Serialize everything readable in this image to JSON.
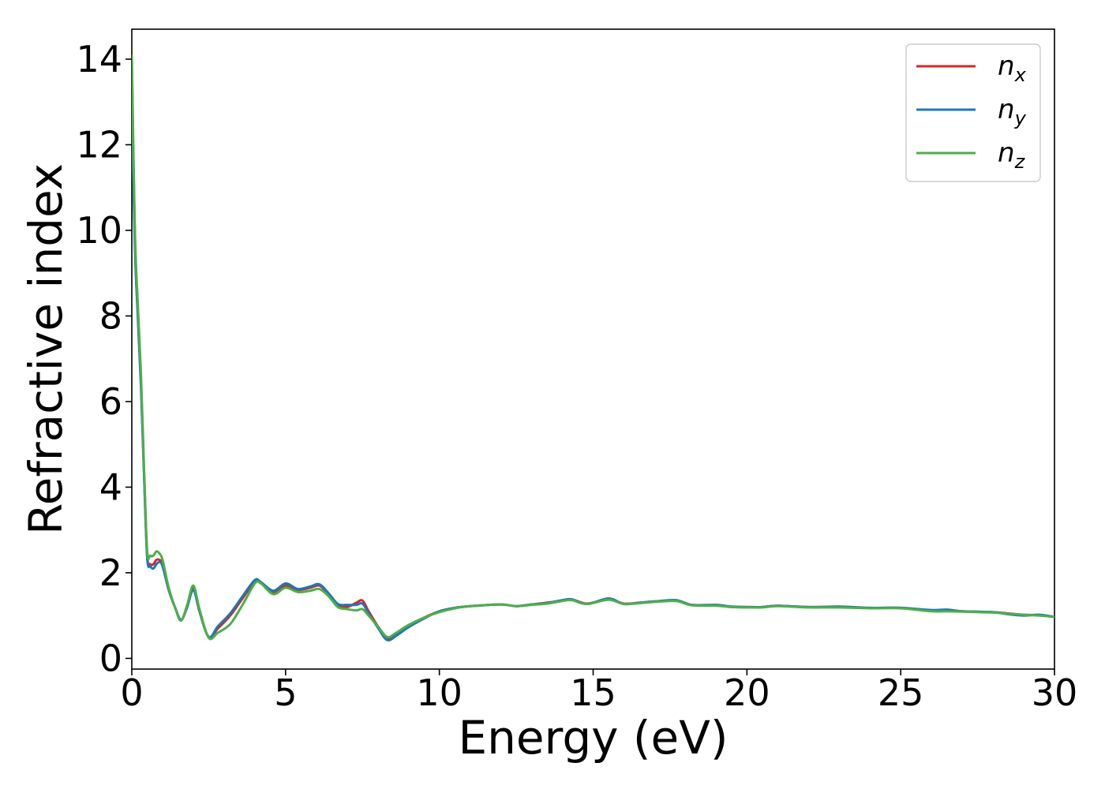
{
  "chart_data": {
    "type": "line",
    "title": "",
    "xlabel": "Energy (eV)",
    "ylabel": "Refractive index",
    "xlim": [
      0,
      30
    ],
    "ylim": [
      -0.25,
      14.7
    ],
    "xticks": [
      0,
      5,
      10,
      15,
      20,
      25,
      30
    ],
    "xtick_labels": [
      "0",
      "5",
      "10",
      "15",
      "20",
      "25",
      "30"
    ],
    "yticks": [
      0,
      2,
      4,
      6,
      8,
      10,
      12,
      14
    ],
    "ytick_labels": [
      "0",
      "2",
      "4",
      "6",
      "8",
      "10",
      "12",
      "14"
    ],
    "grid": false,
    "legend_position": "top-right",
    "series": [
      {
        "name": "n_x",
        "legend_base": "n",
        "legend_sub": "x",
        "color": "#d62728",
        "x": [
          0,
          0.1,
          0.2,
          0.3,
          0.4,
          0.5,
          0.6,
          0.7,
          0.8,
          0.9,
          1.0,
          1.2,
          1.4,
          1.6,
          1.8,
          2.0,
          2.2,
          2.5,
          2.8,
          3.2,
          3.6,
          4.0,
          4.2,
          4.6,
          5.0,
          5.4,
          5.8,
          6.1,
          6.4,
          6.7,
          7.0,
          7.3,
          7.5,
          7.7,
          8.0,
          8.3,
          8.6,
          9.0,
          9.5,
          10.0,
          10.5,
          11.0,
          12.0,
          12.5,
          13.0,
          13.5,
          14.0,
          14.3,
          14.8,
          15.5,
          16.0,
          16.5,
          17.0,
          17.7,
          18.2,
          19.0,
          19.5,
          20.0,
          20.5,
          21.0,
          22.0,
          23.0,
          24.0,
          25.0,
          26.0,
          26.5,
          27.0,
          28.0,
          28.5,
          29.0,
          29.5,
          30.0
        ],
        "y": [
          14.0,
          9.8,
          8.0,
          6.4,
          4.3,
          2.4,
          2.2,
          2.2,
          2.3,
          2.3,
          2.2,
          1.6,
          1.2,
          0.9,
          1.2,
          1.65,
          1.1,
          0.5,
          0.7,
          1.0,
          1.4,
          1.8,
          1.75,
          1.55,
          1.7,
          1.6,
          1.65,
          1.7,
          1.5,
          1.25,
          1.2,
          1.3,
          1.35,
          1.1,
          0.75,
          0.45,
          0.55,
          0.75,
          0.95,
          1.1,
          1.18,
          1.22,
          1.26,
          1.22,
          1.26,
          1.3,
          1.35,
          1.38,
          1.28,
          1.38,
          1.28,
          1.3,
          1.33,
          1.35,
          1.25,
          1.24,
          1.2,
          1.2,
          1.2,
          1.23,
          1.2,
          1.2,
          1.18,
          1.18,
          1.12,
          1.12,
          1.1,
          1.08,
          1.05,
          1.02,
          1.01,
          0.97
        ]
      },
      {
        "name": "n_y",
        "legend_base": "n",
        "legend_sub": "y",
        "color": "#1f77b4",
        "x": [
          0,
          0.1,
          0.2,
          0.3,
          0.4,
          0.5,
          0.6,
          0.7,
          0.8,
          0.9,
          1.0,
          1.2,
          1.4,
          1.6,
          1.8,
          2.0,
          2.2,
          2.5,
          2.8,
          3.2,
          3.6,
          4.0,
          4.2,
          4.6,
          5.0,
          5.4,
          5.8,
          6.1,
          6.4,
          6.7,
          7.0,
          7.3,
          7.5,
          7.7,
          8.0,
          8.3,
          8.6,
          9.0,
          9.5,
          10.0,
          10.5,
          11.0,
          12.0,
          12.5,
          13.0,
          13.5,
          14.0,
          14.3,
          14.8,
          15.5,
          16.0,
          16.5,
          17.0,
          17.7,
          18.2,
          19.0,
          19.5,
          20.0,
          20.5,
          21.0,
          22.0,
          23.0,
          24.0,
          25.0,
          26.0,
          26.5,
          27.0,
          28.0,
          28.5,
          29.0,
          29.5,
          30.0
        ],
        "y": [
          12.8,
          9.6,
          7.9,
          6.3,
          4.2,
          2.35,
          2.15,
          2.1,
          2.2,
          2.25,
          2.15,
          1.6,
          1.2,
          0.9,
          1.2,
          1.6,
          1.1,
          0.5,
          0.75,
          1.05,
          1.45,
          1.83,
          1.78,
          1.58,
          1.75,
          1.62,
          1.68,
          1.73,
          1.52,
          1.27,
          1.25,
          1.25,
          1.28,
          1.05,
          0.72,
          0.43,
          0.53,
          0.73,
          0.93,
          1.1,
          1.18,
          1.22,
          1.26,
          1.22,
          1.26,
          1.29,
          1.36,
          1.38,
          1.27,
          1.4,
          1.27,
          1.3,
          1.33,
          1.36,
          1.25,
          1.25,
          1.21,
          1.2,
          1.2,
          1.23,
          1.2,
          1.21,
          1.18,
          1.18,
          1.13,
          1.14,
          1.1,
          1.08,
          1.03,
          1.0,
          1.02,
          0.97
        ]
      },
      {
        "name": "n_z",
        "legend_base": "n",
        "legend_sub": "z",
        "color": "#4daf4a",
        "x": [
          0,
          0.1,
          0.2,
          0.3,
          0.4,
          0.5,
          0.6,
          0.7,
          0.8,
          0.9,
          1.0,
          1.2,
          1.4,
          1.6,
          1.8,
          2.0,
          2.2,
          2.5,
          2.8,
          3.2,
          3.6,
          4.0,
          4.2,
          4.6,
          5.0,
          5.4,
          5.8,
          6.1,
          6.4,
          6.7,
          7.0,
          7.3,
          7.5,
          7.7,
          8.0,
          8.3,
          8.6,
          9.0,
          9.5,
          10.0,
          10.5,
          11.0,
          12.0,
          12.5,
          13.0,
          13.5,
          14.0,
          14.3,
          14.8,
          15.5,
          16.0,
          16.5,
          17.0,
          17.7,
          18.2,
          19.0,
          19.5,
          20.0,
          20.5,
          21.0,
          22.0,
          23.0,
          24.0,
          25.0,
          26.0,
          26.5,
          27.0,
          28.0,
          28.5,
          29.0,
          29.5,
          30.0
        ],
        "y": [
          14.1,
          10.0,
          8.2,
          6.6,
          4.4,
          2.5,
          2.4,
          2.4,
          2.5,
          2.45,
          2.3,
          1.65,
          1.2,
          0.88,
          1.25,
          1.7,
          1.15,
          0.48,
          0.6,
          0.8,
          1.25,
          1.75,
          1.75,
          1.5,
          1.65,
          1.55,
          1.58,
          1.62,
          1.45,
          1.2,
          1.15,
          1.12,
          1.15,
          1.0,
          0.75,
          0.5,
          0.6,
          0.78,
          0.95,
          1.08,
          1.17,
          1.22,
          1.26,
          1.22,
          1.25,
          1.28,
          1.34,
          1.36,
          1.27,
          1.37,
          1.27,
          1.29,
          1.32,
          1.34,
          1.24,
          1.23,
          1.2,
          1.19,
          1.19,
          1.22,
          1.19,
          1.19,
          1.17,
          1.17,
          1.1,
          1.1,
          1.09,
          1.07,
          1.04,
          1.02,
          1.0,
          0.97
        ]
      }
    ]
  }
}
